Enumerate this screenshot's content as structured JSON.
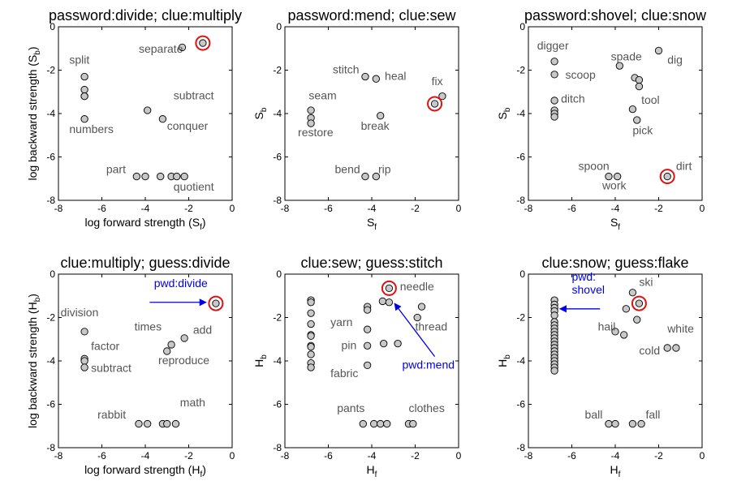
{
  "chart_data": [
    {
      "type": "scatter",
      "title": "password:divide; clue:multiply",
      "xlabel": "log forward strength (S",
      "xlabel_sub": "f",
      "xlabel_suffix": ")",
      "ylabel": "log backward strength (S",
      "ylabel_sub": "b",
      "ylabel_suffix": ")",
      "xlim": [
        -8,
        0
      ],
      "ylim": [
        -8,
        0
      ],
      "xticks": [
        -8,
        -6,
        -4,
        -2,
        0
      ],
      "yticks": [
        -8,
        -6,
        -4,
        -2,
        0
      ],
      "colors": {
        "marker_fill": "#c8c8c8",
        "highlight": "#e01010"
      },
      "points": [
        [
          -6.8,
          -2.3
        ],
        [
          -6.8,
          -2.9
        ],
        [
          -6.8,
          -3.2
        ],
        [
          -6.8,
          -3.2
        ],
        [
          -6.8,
          -4.25
        ],
        [
          -3.9,
          -3.85
        ],
        [
          -3.2,
          -4.25
        ],
        [
          -2.3,
          -0.95
        ],
        [
          -4.4,
          -6.9
        ],
        [
          -4.0,
          -6.9
        ],
        [
          -3.3,
          -6.9
        ],
        [
          -2.8,
          -6.9
        ],
        [
          -2.55,
          -6.9
        ],
        [
          -2.2,
          -6.9
        ]
      ],
      "highlight": [
        -1.35,
        -0.75
      ],
      "labels": [
        {
          "text": "separate",
          "x": -4.3,
          "y": -1.2
        },
        {
          "text": "split",
          "x": -7.5,
          "y": -1.7
        },
        {
          "text": "subtract",
          "x": -2.7,
          "y": -3.35
        },
        {
          "text": "numbers",
          "x": -7.5,
          "y": -4.9
        },
        {
          "text": "conquer",
          "x": -3.0,
          "y": -4.75
        },
        {
          "text": "part",
          "x": -5.8,
          "y": -6.75
        },
        {
          "text": "quotient",
          "x": -2.7,
          "y": -7.55
        }
      ],
      "annotations": []
    },
    {
      "type": "scatter",
      "title": "password:mend; clue:sew",
      "xlabel": "S",
      "xlabel_sub": "f",
      "xlabel_suffix": "",
      "ylabel": "S",
      "ylabel_sub": "b",
      "ylabel_suffix": "",
      "xlim": [
        -8,
        0
      ],
      "ylim": [
        -8,
        0
      ],
      "xticks": [
        -8,
        -6,
        -4,
        -2,
        0
      ],
      "yticks": [
        -8,
        -6,
        -4,
        -2,
        0
      ],
      "colors": {
        "marker_fill": "#c8c8c8",
        "highlight": "#e01010"
      },
      "points": [
        [
          -6.8,
          -3.85
        ],
        [
          -6.8,
          -4.2
        ],
        [
          -6.8,
          -4.45
        ],
        [
          -4.3,
          -2.3
        ],
        [
          -3.8,
          -2.4
        ],
        [
          -3.6,
          -4.1
        ],
        [
          -0.75,
          -3.2
        ],
        [
          -4.3,
          -6.9
        ],
        [
          -3.8,
          -6.9
        ]
      ],
      "highlight": [
        -1.1,
        -3.55
      ],
      "labels": [
        {
          "text": "stitch",
          "x": -5.8,
          "y": -2.15
        },
        {
          "text": "heal",
          "x": -3.4,
          "y": -2.45
        },
        {
          "text": "fix",
          "x": -1.25,
          "y": -2.7
        },
        {
          "text": "seam",
          "x": -6.9,
          "y": -3.35
        },
        {
          "text": "restore",
          "x": -7.4,
          "y": -5.05
        },
        {
          "text": "break",
          "x": -4.5,
          "y": -4.75
        },
        {
          "text": "bend",
          "x": -5.7,
          "y": -6.75
        },
        {
          "text": "rip",
          "x": -3.7,
          "y": -6.75
        }
      ],
      "annotations": []
    },
    {
      "type": "scatter",
      "title": "password:shovel; clue:snow",
      "xlabel": "S",
      "xlabel_sub": "f",
      "xlabel_suffix": "",
      "ylabel": "S",
      "ylabel_sub": "b",
      "ylabel_suffix": "",
      "xlim": [
        -8,
        0
      ],
      "ylim": [
        -8,
        0
      ],
      "xticks": [
        -8,
        -6,
        -4,
        -2,
        0
      ],
      "yticks": [
        -8,
        -6,
        -4,
        -2,
        0
      ],
      "colors": {
        "marker_fill": "#c8c8c8",
        "highlight": "#e01010"
      },
      "points": [
        [
          -6.8,
          -1.6
        ],
        [
          -6.8,
          -2.2
        ],
        [
          -6.8,
          -3.4
        ],
        [
          -6.8,
          -3.85
        ],
        [
          -6.8,
          -4.0
        ],
        [
          -6.8,
          -4.15
        ],
        [
          -3.8,
          -1.8
        ],
        [
          -3.1,
          -2.35
        ],
        [
          -2.9,
          -2.45
        ],
        [
          -2.9,
          -2.75
        ],
        [
          -3.2,
          -3.8
        ],
        [
          -3.0,
          -4.3
        ],
        [
          -2.0,
          -1.1
        ],
        [
          -4.3,
          -6.9
        ],
        [
          -3.9,
          -6.9
        ]
      ],
      "highlight": [
        -1.6,
        -6.9
      ],
      "labels": [
        {
          "text": "digger",
          "x": -7.6,
          "y": -1.05
        },
        {
          "text": "spade",
          "x": -4.2,
          "y": -1.55
        },
        {
          "text": "dig",
          "x": -1.6,
          "y": -1.7
        },
        {
          "text": "scoop",
          "x": -6.3,
          "y": -2.4
        },
        {
          "text": "ditch",
          "x": -6.5,
          "y": -3.5
        },
        {
          "text": "tool",
          "x": -2.8,
          "y": -3.55
        },
        {
          "text": "pick",
          "x": -3.2,
          "y": -4.95
        },
        {
          "text": "spoon",
          "x": -5.7,
          "y": -6.6
        },
        {
          "text": "dirt",
          "x": -1.2,
          "y": -6.6
        },
        {
          "text": "work",
          "x": -4.6,
          "y": -7.5
        }
      ],
      "annotations": []
    },
    {
      "type": "scatter",
      "title": "clue:multiply; guess:divide",
      "xlabel": "log forward strength (H",
      "xlabel_sub": "f",
      "xlabel_suffix": ")",
      "ylabel": "log backward strength (H",
      "ylabel_sub": "b",
      "ylabel_suffix": ")",
      "xlim": [
        -8,
        0
      ],
      "ylim": [
        -8,
        0
      ],
      "xticks": [
        -8,
        -6,
        -4,
        -2,
        0
      ],
      "yticks": [
        -8,
        -6,
        -4,
        -2,
        0
      ],
      "colors": {
        "marker_fill": "#c8c8c8",
        "highlight": "#e01010",
        "annotation": "#0000ee"
      },
      "points": [
        [
          -6.8,
          -2.65
        ],
        [
          -6.8,
          -3.9
        ],
        [
          -6.8,
          -4.0
        ],
        [
          -6.8,
          -4.3
        ],
        [
          -2.2,
          -2.95
        ],
        [
          -2.8,
          -3.25
        ],
        [
          -3.0,
          -3.55
        ],
        [
          -4.3,
          -6.9
        ],
        [
          -3.9,
          -6.9
        ],
        [
          -3.2,
          -6.9
        ],
        [
          -3.0,
          -6.9
        ],
        [
          -2.6,
          -6.9
        ]
      ],
      "highlight": [
        -0.75,
        -1.35
      ],
      "labels": [
        {
          "text": "division",
          "x": -7.9,
          "y": -1.95
        },
        {
          "text": "factor",
          "x": -6.5,
          "y": -3.5
        },
        {
          "text": "subtract",
          "x": -6.5,
          "y": -4.5
        },
        {
          "text": "times",
          "x": -4.5,
          "y": -2.6
        },
        {
          "text": "add",
          "x": -1.8,
          "y": -2.75
        },
        {
          "text": "reproduce",
          "x": -3.4,
          "y": -4.15
        },
        {
          "text": "rabbit",
          "x": -6.2,
          "y": -6.65
        },
        {
          "text": "math",
          "x": -2.4,
          "y": -6.1
        }
      ],
      "annotations": [
        {
          "lines": [
            "pwd:divide"
          ],
          "x": -3.6,
          "y": -0.6,
          "arrow_from": [
            -3.8,
            -1.3
          ],
          "arrow_to": [
            -1.2,
            -1.3
          ]
        }
      ]
    },
    {
      "type": "scatter",
      "title": "clue:sew; guess:stitch",
      "xlabel": "H",
      "xlabel_sub": "f",
      "xlabel_suffix": "",
      "ylabel": "H",
      "ylabel_sub": "b",
      "ylabel_suffix": "",
      "xlim": [
        -8,
        0
      ],
      "ylim": [
        -8,
        0
      ],
      "xticks": [
        -8,
        -6,
        -4,
        -2,
        0
      ],
      "yticks": [
        -8,
        -6,
        -4,
        -2,
        0
      ],
      "colors": {
        "marker_fill": "#c8c8c8",
        "highlight": "#e01010",
        "annotation": "#0000ee"
      },
      "points": [
        [
          -6.8,
          -1.2
        ],
        [
          -6.8,
          -1.3
        ],
        [
          -6.8,
          -1.8
        ],
        [
          -6.8,
          -2.3
        ],
        [
          -6.8,
          -2.8
        ],
        [
          -6.8,
          -2.85
        ],
        [
          -6.8,
          -3.3
        ],
        [
          -6.8,
          -3.35
        ],
        [
          -6.8,
          -3.7
        ],
        [
          -6.8,
          -4.1
        ],
        [
          -6.8,
          -4.3
        ],
        [
          -4.2,
          -1.5
        ],
        [
          -4.2,
          -1.65
        ],
        [
          -4.2,
          -2.55
        ],
        [
          -4.2,
          -3.3
        ],
        [
          -4.2,
          -4.2
        ],
        [
          -3.5,
          -1.25
        ],
        [
          -3.2,
          -1.3
        ],
        [
          -3.45,
          -3.2
        ],
        [
          -2.8,
          -3.2
        ],
        [
          -1.7,
          -1.5
        ],
        [
          -1.9,
          -2.0
        ],
        [
          -4.4,
          -6.9
        ],
        [
          -3.9,
          -6.9
        ],
        [
          -3.6,
          -6.9
        ],
        [
          -3.3,
          -6.9
        ],
        [
          -2.3,
          -6.9
        ],
        [
          -2.1,
          -6.9
        ]
      ],
      "highlight": [
        -3.2,
        -0.65
      ],
      "labels": [
        {
          "text": "needle",
          "x": -2.7,
          "y": -0.75
        },
        {
          "text": "yarn",
          "x": -5.9,
          "y": -2.4
        },
        {
          "text": "thread",
          "x": -2.0,
          "y": -2.6
        },
        {
          "text": "pin",
          "x": -5.4,
          "y": -3.45
        },
        {
          "text": "fabric",
          "x": -5.9,
          "y": -4.75
        },
        {
          "text": "pants",
          "x": -5.6,
          "y": -6.35
        },
        {
          "text": "clothes",
          "x": -2.3,
          "y": -6.35
        }
      ],
      "annotations": [
        {
          "lines": [
            "pwd:mend"
          ],
          "x": -2.6,
          "y": -4.35,
          "arrow_from": [
            -1.1,
            -3.8
          ],
          "arrow_to": [
            -2.95,
            -1.35
          ]
        }
      ]
    },
    {
      "type": "scatter",
      "title": "clue:snow; guess:flake",
      "xlabel": "H",
      "xlabel_sub": "f",
      "xlabel_suffix": "",
      "ylabel": "H",
      "ylabel_sub": "b",
      "ylabel_suffix": "",
      "xlim": [
        -8,
        0
      ],
      "ylim": [
        -8,
        0
      ],
      "xticks": [
        -8,
        -6,
        -4,
        -2,
        0
      ],
      "yticks": [
        -8,
        -6,
        -4,
        -2,
        0
      ],
      "colors": {
        "marker_fill": "#c8c8c8",
        "highlight": "#e01010",
        "annotation": "#0000ee"
      },
      "points": [
        [
          -6.8,
          -1.2
        ],
        [
          -6.8,
          -1.4
        ],
        [
          -6.8,
          -1.55
        ],
        [
          -6.8,
          -1.7
        ],
        [
          -6.8,
          -1.9
        ],
        [
          -6.8,
          -2.2
        ],
        [
          -6.8,
          -2.35
        ],
        [
          -6.8,
          -2.5
        ],
        [
          -6.8,
          -2.65
        ],
        [
          -6.8,
          -2.8
        ],
        [
          -6.8,
          -2.95
        ],
        [
          -6.8,
          -3.1
        ],
        [
          -6.8,
          -3.25
        ],
        [
          -6.8,
          -3.4
        ],
        [
          -6.8,
          -3.55
        ],
        [
          -6.8,
          -3.7
        ],
        [
          -6.8,
          -3.85
        ],
        [
          -6.8,
          -4.0
        ],
        [
          -6.8,
          -4.15
        ],
        [
          -6.8,
          -4.3
        ],
        [
          -6.8,
          -4.45
        ],
        [
          -3.2,
          -0.85
        ],
        [
          -3.5,
          -1.6
        ],
        [
          -3.0,
          -2.1
        ],
        [
          -4.0,
          -2.65
        ],
        [
          -3.6,
          -2.8
        ],
        [
          -1.6,
          -3.4
        ],
        [
          -1.2,
          -3.4
        ],
        [
          -4.3,
          -6.9
        ],
        [
          -4.0,
          -6.9
        ],
        [
          -3.2,
          -6.9
        ],
        [
          -2.8,
          -6.9
        ]
      ],
      "highlight": [
        -2.9,
        -1.35
      ],
      "labels": [
        {
          "text": "ski",
          "x": -2.9,
          "y": -0.55
        },
        {
          "text": "hail",
          "x": -4.8,
          "y": -2.6
        },
        {
          "text": "white",
          "x": -1.6,
          "y": -2.7
        },
        {
          "text": "cold",
          "x": -2.9,
          "y": -3.7
        },
        {
          "text": "ball",
          "x": -5.4,
          "y": -6.65
        },
        {
          "text": "fall",
          "x": -2.6,
          "y": -6.65
        }
      ],
      "annotations": [
        {
          "lines": [
            "pwd:",
            "shovel"
          ],
          "x": -6.0,
          "y": -0.3,
          "arrow_from": [
            -4.7,
            -1.6
          ],
          "arrow_to": [
            -6.55,
            -1.6
          ]
        }
      ]
    }
  ]
}
